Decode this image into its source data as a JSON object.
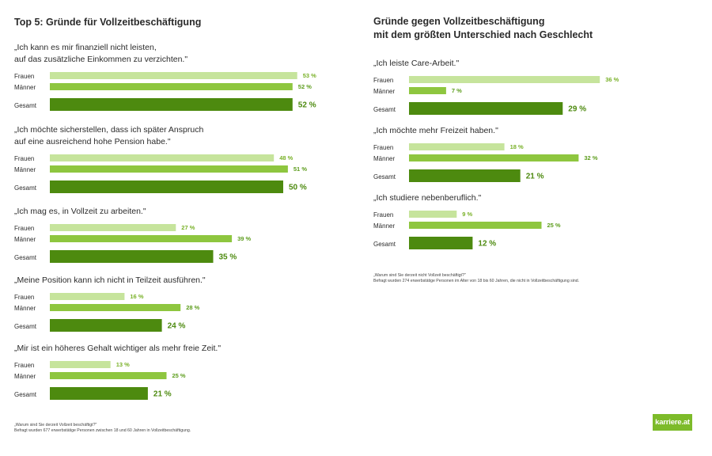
{
  "colors": {
    "frauen": "#c6e49c",
    "maenner": "#8ec63f",
    "gesamt": "#4d8a0f",
    "val_frauen": "#79b128",
    "val_maenner": "#5d9d1d",
    "val_gesamt": "#4d8a0f"
  },
  "legend": [
    "Frauen",
    "Männer",
    "Gesamt"
  ],
  "left_footnote": [
    "„Warum sind Sie derzeit Vollzeit beschäftigt?\"",
    "Befragt wurden 677 erwerbstätige Personen zwischen 18 und 60 Jahren in Vollzeitbeschäftigung."
  ],
  "right_footnote": [
    "„Warum sind Sie derzeit nicht Vollzeit beschäftigt?\"",
    "Befragt wurden 274 erwerbstätige Personen im Alter von 18 bis 60 Jahren, die nicht in Vollzeitbeschäftigung sind."
  ],
  "logo": "karriere.at",
  "chart_data": [
    {
      "type": "bar",
      "title": "Top 5: Gründe für Vollzeitbeschäftigung",
      "unit": "%",
      "groups": [
        {
          "question": [
            "„Ich kann es mir finanziell nicht leisten,",
            "auf das zusätzliche Einkommen zu verzichten.\""
          ],
          "frauen": 53,
          "maenner": 52,
          "gesamt": 52
        },
        {
          "question": [
            "„Ich möchte sicherstellen, dass ich später Anspruch",
            "auf eine ausreichend hohe Pension habe.\""
          ],
          "frauen": 48,
          "maenner": 51,
          "gesamt": 50
        },
        {
          "question": [
            "„Ich mag es, in Vollzeit zu arbeiten.\""
          ],
          "frauen": 27,
          "maenner": 39,
          "gesamt": 35
        },
        {
          "question": [
            "„Meine Position kann ich nicht in Teilzeit ausführen.\""
          ],
          "frauen": 16,
          "maenner": 28,
          "gesamt": 24
        },
        {
          "question": [
            "„Mir ist ein höheres Gehalt wichtiger als mehr freie Zeit.\""
          ],
          "frauen": 13,
          "maenner": 25,
          "gesamt": 21
        }
      ]
    },
    {
      "type": "bar",
      "title": [
        "Gründe gegen Vollzeitbeschäftigung",
        "mit dem größten Unterschied nach Geschlecht"
      ],
      "unit": "%",
      "groups": [
        {
          "question": [
            "„Ich leiste Care-Arbeit.\""
          ],
          "frauen": 36,
          "maenner": 7,
          "gesamt": 29
        },
        {
          "question": [
            "„Ich möchte mehr Freizeit haben.\""
          ],
          "frauen": 18,
          "maenner": 32,
          "gesamt": 21
        },
        {
          "question": [
            "„Ich studiere nebenberuflich.\""
          ],
          "frauen": 9,
          "maenner": 25,
          "gesamt": 12
        }
      ]
    }
  ]
}
